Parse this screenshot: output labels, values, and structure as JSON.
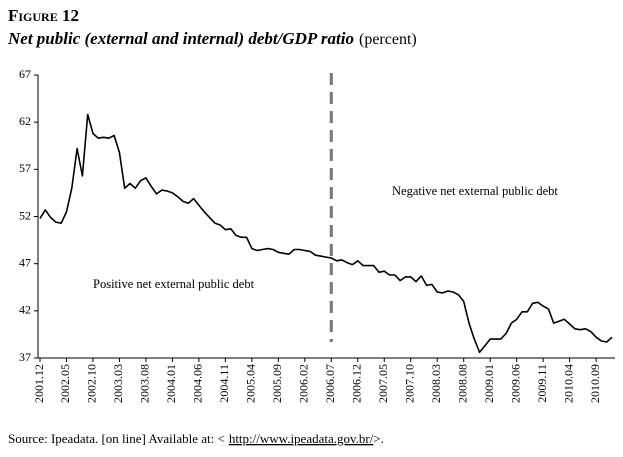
{
  "chart_data": {
    "type": "line",
    "figure_label": "Figure 12",
    "title": "Net public (external and internal) debt/GDP ratio",
    "unit": "(percent)",
    "categories": [
      "2001.12",
      null,
      null,
      null,
      null,
      "2002.05",
      null,
      null,
      null,
      null,
      "2002.10",
      null,
      null,
      null,
      null,
      "2003.03",
      null,
      null,
      null,
      null,
      "2003.08",
      null,
      null,
      null,
      null,
      "2004.01",
      null,
      null,
      null,
      null,
      "2004.06",
      null,
      null,
      null,
      null,
      "2004.11",
      null,
      null,
      null,
      null,
      "2005.04",
      null,
      null,
      null,
      null,
      "2005.09",
      null,
      null,
      null,
      null,
      "2006.02",
      null,
      null,
      null,
      null,
      "2006.07",
      null,
      null,
      null,
      null,
      "2006.12",
      null,
      null,
      null,
      null,
      "2007.05",
      null,
      null,
      null,
      null,
      "2007.10",
      null,
      null,
      null,
      null,
      "2008.03",
      null,
      null,
      null,
      null,
      "2008.08",
      null,
      null,
      null,
      null,
      "2009.01",
      null,
      null,
      null,
      null,
      "2009.06",
      null,
      null,
      null,
      null,
      "2009.11",
      null,
      null,
      null,
      null,
      "2010.04",
      null,
      null,
      null,
      null,
      "2010.09",
      null,
      null,
      null
    ],
    "values": [
      51.8,
      52.7,
      51.9,
      51.4,
      51.3,
      52.5,
      55,
      59.2,
      56.3,
      62.8,
      60.8,
      60.3,
      60.4,
      60.3,
      60.6,
      58.8,
      55,
      55.5,
      55,
      55.8,
      56.1,
      55.2,
      54.4,
      54.8,
      54.7,
      54.5,
      54.1,
      53.6,
      53.4,
      53.9,
      53.2,
      52.5,
      51.9,
      51.3,
      51.1,
      50.6,
      50.7,
      50,
      49.8,
      49.8,
      48.6,
      48.4,
      48.5,
      48.6,
      48.5,
      48.2,
      48.1,
      48,
      48.5,
      48.5,
      48.4,
      48.3,
      47.9,
      47.8,
      47.7,
      47.6,
      47.3,
      47.4,
      47.1,
      46.9,
      47.3,
      46.8,
      46.8,
      46.8,
      46.1,
      46.2,
      45.8,
      45.8,
      45.2,
      45.6,
      45.6,
      45.1,
      45.7,
      44.7,
      44.8,
      44,
      43.9,
      44.1,
      44,
      43.7,
      43,
      40.7,
      39,
      37.6,
      38.3,
      39,
      39,
      39,
      39.6,
      40.7,
      41.1,
      41.9,
      41.9,
      42.8,
      42.9,
      42.5,
      42.2,
      40.7,
      40.9,
      41.1,
      40.6,
      40.1,
      40,
      40.1,
      39.8,
      39.2,
      38.8,
      38.7,
      39.2
    ],
    "color": "#000000",
    "ylim": [
      37,
      67
    ],
    "yticks": [
      37,
      42,
      47,
      52,
      57,
      62,
      67
    ],
    "grid": false,
    "vline": "2006.07",
    "annotations": [
      "Negative net external public debt",
      "Positive net external public debt"
    ],
    "source": {
      "text": "Source: Ipeadata. [on line] Available at: <",
      "link": "http://www.ipeadata.gov.br/",
      "end": ">."
    }
  }
}
